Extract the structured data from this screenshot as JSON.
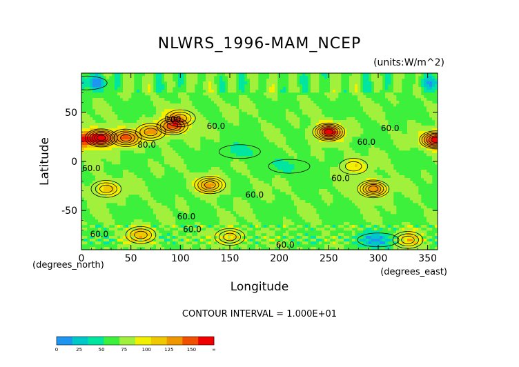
{
  "chart_data": {
    "type": "heatmap",
    "title": "NLWRS_1996-MAM_NCEP",
    "units": "(units:W/m^2)",
    "xlabel": "Longitude",
    "ylabel": "Latitude",
    "x_note": "(degrees_east)",
    "y_note": "(degrees_north)",
    "xlim": [
      0,
      360
    ],
    "ylim": [
      -90,
      90
    ],
    "x_ticks": [
      0,
      50,
      100,
      150,
      200,
      250,
      300,
      350
    ],
    "y_ticks": [
      -50,
      0,
      50
    ],
    "contour_interval": "CONTOUR INTERVAL = 1.000E+01",
    "contour_labels": [
      {
        "text": "100.",
        "lon": 94,
        "lat": 40
      },
      {
        "text": "60.0",
        "lon": 136,
        "lat": 33
      },
      {
        "text": "80.0",
        "lon": 66,
        "lat": 14
      },
      {
        "text": "60.0",
        "lon": 312,
        "lat": 31
      },
      {
        "text": "60.0",
        "lon": 288,
        "lat": 17
      },
      {
        "text": "60.0",
        "lon": 10,
        "lat": -10
      },
      {
        "text": "60.0",
        "lon": 262,
        "lat": -20
      },
      {
        "text": "60.0",
        "lon": 175,
        "lat": -37
      },
      {
        "text": "60.0",
        "lon": 106,
        "lat": -59
      },
      {
        "text": "60.0",
        "lon": 112,
        "lat": -72
      },
      {
        "text": "60.0",
        "lon": 18,
        "lat": -77
      },
      {
        "text": "60.0",
        "lon": 206,
        "lat": -88
      }
    ],
    "colorbar": {
      "colors": [
        "#1e96f0",
        "#00c8c8",
        "#00e6a0",
        "#3cf03c",
        "#a0f03c",
        "#f0f000",
        "#f0c800",
        "#f09600",
        "#f05000",
        "#f00000"
      ],
      "tick_labels": [
        "0",
        "25",
        "50",
        "75",
        "100",
        "125",
        "150",
        "∞"
      ]
    },
    "field": {
      "description_values": "background ~ 50-75 W/m^2 (green)",
      "hotspots": [
        {
          "lon": 20,
          "lat": 24,
          "peak": 155
        },
        {
          "lon": 45,
          "lat": 24,
          "peak": 120
        },
        {
          "lon": 70,
          "lat": 30,
          "peak": 110
        },
        {
          "lon": 92,
          "lat": 36,
          "peak": 125
        },
        {
          "lon": 100,
          "lat": 44,
          "peak": 105
        },
        {
          "lon": 250,
          "lat": 30,
          "peak": 150
        },
        {
          "lon": 358,
          "lat": 22,
          "peak": 150
        },
        {
          "lon": 130,
          "lat": -24,
          "peak": 115
        },
        {
          "lon": 25,
          "lat": -28,
          "peak": 105
        },
        {
          "lon": 295,
          "lat": -28,
          "peak": 130
        },
        {
          "lon": 275,
          "lat": -5,
          "peak": 95
        },
        {
          "lon": 60,
          "lat": -75,
          "peak": 105
        },
        {
          "lon": 150,
          "lat": -77,
          "peak": 100
        },
        {
          "lon": 330,
          "lat": -80,
          "peak": 105
        }
      ],
      "lows": [
        {
          "lon": 5,
          "lat": 80,
          "value": 20
        },
        {
          "lon": 300,
          "lat": -80,
          "value": 20
        },
        {
          "lon": 160,
          "lat": 10,
          "value": 40
        },
        {
          "lon": 210,
          "lat": -5,
          "value": 45
        }
      ]
    }
  }
}
